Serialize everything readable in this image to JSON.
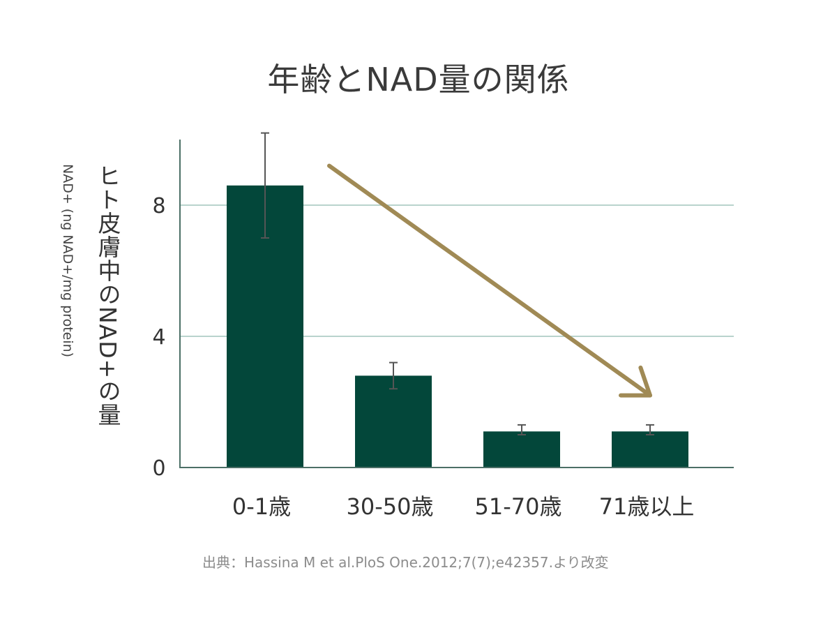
{
  "chart_data": {
    "type": "bar",
    "title": "年齢とNAD量の関係",
    "ylabel": "ヒト皮膚中のNAD+の量",
    "ylabel_sub": "NAD+ (ng NAD+/mg protein)",
    "xlabel": "",
    "categories": [
      "0-1歳",
      "30-50歳",
      "51-70歳",
      "71歳以上"
    ],
    "values": [
      8.6,
      2.8,
      1.1,
      1.1
    ],
    "error_low": [
      7.0,
      2.4,
      1.0,
      1.0
    ],
    "error_high": [
      10.2,
      3.2,
      1.3,
      1.3
    ],
    "ylim": [
      0,
      10
    ],
    "yticks": [
      "0",
      "4",
      "8"
    ],
    "ytick_values": [
      0,
      4,
      8
    ],
    "grid": true,
    "bar_color": "#03473a",
    "grid_color": "#b9d3cd",
    "axis_color": "#4b6f66",
    "trend_arrow_color": "#a08a55",
    "trend_arrow": {
      "from": {
        "x": 0.5,
        "y": 9.2
      },
      "to": {
        "x": 3.0,
        "y": 2.2
      }
    }
  },
  "source": "出典：Hassina M et al.PloS One.2012;7(7);e42357.より改変"
}
